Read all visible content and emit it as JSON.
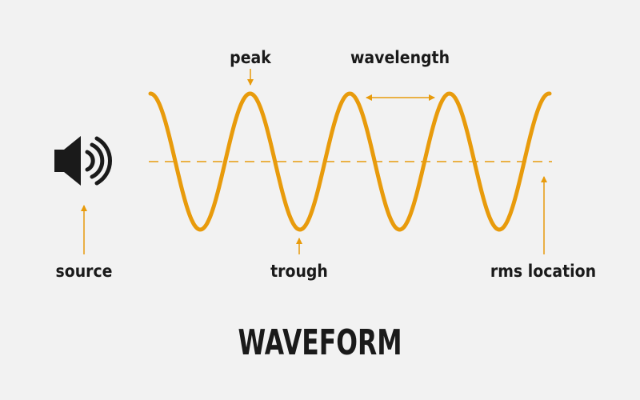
{
  "labels": {
    "peak": "peak",
    "wavelength": "wavelength",
    "source": "source",
    "trough": "trough",
    "rms": "rms location"
  },
  "title": "WAVEFORM",
  "colors": {
    "wave": "#e89b0c",
    "text": "#1a1a1a",
    "background": "#f2f2f2"
  },
  "icons": {
    "source": "speaker-icon"
  }
}
